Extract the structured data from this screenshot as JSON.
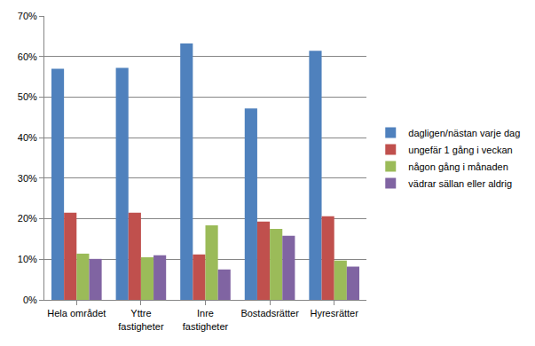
{
  "chart_data": {
    "type": "bar",
    "categories": [
      "Hela området",
      "Yttre fastigheter",
      "Inre fastigheter",
      "Bostadsrätter",
      "Hyresrätter"
    ],
    "series": [
      {
        "name": "dagligen/nästan varje dag",
        "color": "#4F81BD",
        "values": [
          57.0,
          57.2,
          63.2,
          47.2,
          61.4
        ]
      },
      {
        "name": "ungefär 1 gång i veckan",
        "color": "#C0504D",
        "values": [
          21.5,
          21.5,
          11.2,
          19.3,
          20.6
        ]
      },
      {
        "name": "någon gång i månaden",
        "color": "#9BBB59",
        "values": [
          11.4,
          10.5,
          18.4,
          17.5,
          9.7
        ]
      },
      {
        "name": "vädrar sällan eller aldrig",
        "color": "#8064A2",
        "values": [
          10.1,
          11.0,
          7.5,
          15.8,
          8.2
        ]
      }
    ],
    "ylim": [
      0,
      70
    ],
    "yticks": [
      {
        "value": 0,
        "label": "0%"
      },
      {
        "value": 10,
        "label": "10%"
      },
      {
        "value": 20,
        "label": "20%"
      },
      {
        "value": 30,
        "label": "30%"
      },
      {
        "value": 40,
        "label": "40%"
      },
      {
        "value": 50,
        "label": "50%"
      },
      {
        "value": 60,
        "label": "60%"
      },
      {
        "value": 70,
        "label": "70%"
      }
    ],
    "grid": true,
    "legend": "right"
  }
}
